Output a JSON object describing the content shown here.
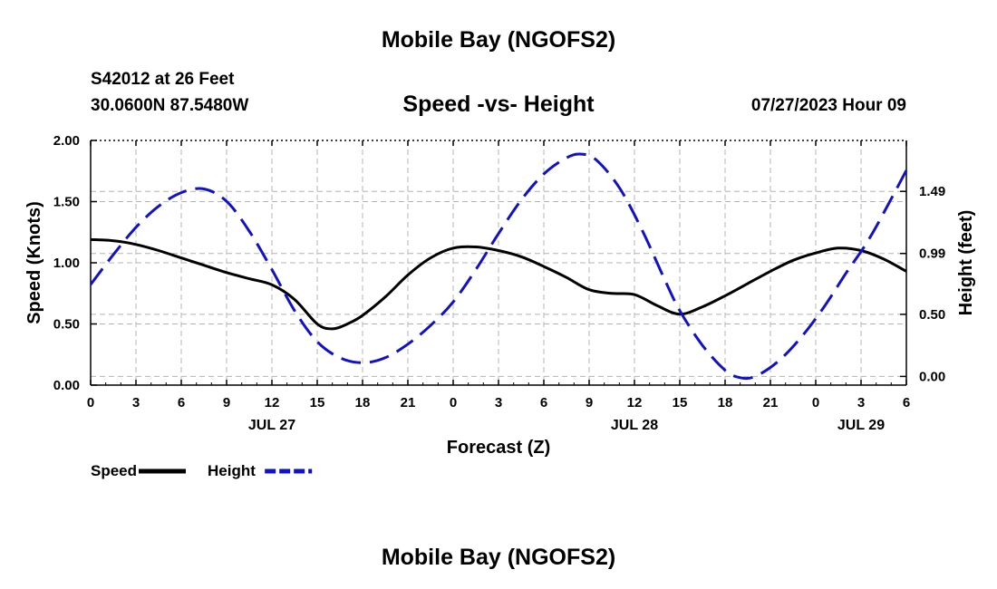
{
  "header": {
    "title": "Mobile Bay (NGOFS2)",
    "station": "S42012 at 26 Feet",
    "coords": "30.0600N  87.5480W",
    "plot_title": "Speed -vs- Height",
    "datetime": "07/27/2023 Hour 09"
  },
  "footer": {
    "title": "Mobile Bay (NGOFS2)"
  },
  "chart_data": {
    "type": "line",
    "xlabel": "Forecast (Z)",
    "ylabel": "Speed (Knots)",
    "y2label": "Height (feet)",
    "x_range_hours": [
      0,
      54
    ],
    "ylim": [
      0,
      2
    ],
    "y2lim": [
      -0.07,
      1.9
    ],
    "x_ticks": [
      {
        "h": 0,
        "label": "0"
      },
      {
        "h": 3,
        "label": "3"
      },
      {
        "h": 6,
        "label": "6"
      },
      {
        "h": 9,
        "label": "9"
      },
      {
        "h": 12,
        "label": "12"
      },
      {
        "h": 15,
        "label": "15"
      },
      {
        "h": 18,
        "label": "18"
      },
      {
        "h": 21,
        "label": "21"
      },
      {
        "h": 24,
        "label": "0"
      },
      {
        "h": 27,
        "label": "3"
      },
      {
        "h": 30,
        "label": "6"
      },
      {
        "h": 33,
        "label": "9"
      },
      {
        "h": 36,
        "label": "12"
      },
      {
        "h": 39,
        "label": "15"
      },
      {
        "h": 42,
        "label": "18"
      },
      {
        "h": 45,
        "label": "21"
      },
      {
        "h": 48,
        "label": "0"
      },
      {
        "h": 51,
        "label": "3"
      },
      {
        "h": 54,
        "label": "6"
      }
    ],
    "date_labels": [
      {
        "h": 12,
        "label": "JUL 27"
      },
      {
        "h": 36,
        "label": "JUL 28"
      },
      {
        "h": 51,
        "label": "JUL 29"
      }
    ],
    "y_ticks": [
      {
        "v": 0,
        "label": "0.00"
      },
      {
        "v": 0.5,
        "label": "0.50"
      },
      {
        "v": 1.0,
        "label": "1.00"
      },
      {
        "v": 1.5,
        "label": "1.50"
      },
      {
        "v": 2.0,
        "label": "2.00"
      }
    ],
    "y2_ticks": [
      {
        "v": 0.0,
        "label": "0.00"
      },
      {
        "v": 0.5,
        "label": "0.50"
      },
      {
        "v": 0.99,
        "label": "0.99"
      },
      {
        "v": 1.49,
        "label": "1.49"
      }
    ],
    "series": [
      {
        "name": "Speed",
        "axis": "left",
        "color": "#000000",
        "dash": false,
        "points": [
          [
            0,
            1.19
          ],
          [
            1.5,
            1.18
          ],
          [
            3,
            1.15
          ],
          [
            4.5,
            1.1
          ],
          [
            6,
            1.04
          ],
          [
            7.5,
            0.98
          ],
          [
            9,
            0.92
          ],
          [
            10.5,
            0.87
          ],
          [
            12,
            0.82
          ],
          [
            13.5,
            0.7
          ],
          [
            15,
            0.5
          ],
          [
            16,
            0.46
          ],
          [
            17,
            0.5
          ],
          [
            18,
            0.57
          ],
          [
            19.5,
            0.72
          ],
          [
            21,
            0.9
          ],
          [
            22.5,
            1.04
          ],
          [
            24,
            1.12
          ],
          [
            25.5,
            1.13
          ],
          [
            27,
            1.1
          ],
          [
            28.5,
            1.05
          ],
          [
            30,
            0.97
          ],
          [
            31.5,
            0.88
          ],
          [
            33,
            0.78
          ],
          [
            34.5,
            0.75
          ],
          [
            36,
            0.74
          ],
          [
            37.5,
            0.65
          ],
          [
            39,
            0.58
          ],
          [
            40.5,
            0.64
          ],
          [
            42,
            0.73
          ],
          [
            43.5,
            0.83
          ],
          [
            45,
            0.93
          ],
          [
            46.5,
            1.02
          ],
          [
            48,
            1.08
          ],
          [
            49.5,
            1.12
          ],
          [
            51,
            1.1
          ],
          [
            52.5,
            1.03
          ],
          [
            54,
            0.93
          ]
        ]
      },
      {
        "name": "Height",
        "axis": "right",
        "color": "#1111cc",
        "dash": true,
        "points": [
          [
            0,
            0.74
          ],
          [
            1.5,
            0.98
          ],
          [
            3,
            1.2
          ],
          [
            4.5,
            1.37
          ],
          [
            6,
            1.48
          ],
          [
            7.5,
            1.51
          ],
          [
            9,
            1.41
          ],
          [
            10.5,
            1.17
          ],
          [
            12,
            0.86
          ],
          [
            13.5,
            0.53
          ],
          [
            15,
            0.28
          ],
          [
            16.5,
            0.15
          ],
          [
            18,
            0.11
          ],
          [
            19.5,
            0.15
          ],
          [
            21,
            0.26
          ],
          [
            22.5,
            0.41
          ],
          [
            24,
            0.6
          ],
          [
            25.5,
            0.86
          ],
          [
            27,
            1.15
          ],
          [
            28.5,
            1.42
          ],
          [
            30,
            1.63
          ],
          [
            31.5,
            1.76
          ],
          [
            32.5,
            1.79
          ],
          [
            33.5,
            1.74
          ],
          [
            35,
            1.52
          ],
          [
            36.5,
            1.18
          ],
          [
            38,
            0.78
          ],
          [
            39,
            0.53
          ],
          [
            40.5,
            0.25
          ],
          [
            42,
            0.05
          ],
          [
            43,
            -0.01
          ],
          [
            44,
            0.0
          ],
          [
            45.5,
            0.12
          ],
          [
            47,
            0.31
          ],
          [
            48.5,
            0.55
          ],
          [
            50,
            0.83
          ],
          [
            51.5,
            1.1
          ],
          [
            53,
            1.43
          ],
          [
            54,
            1.66
          ]
        ]
      }
    ],
    "legend": [
      {
        "label": "Speed",
        "color": "#000000",
        "dash": false
      },
      {
        "label": "Height",
        "color": "#1111cc",
        "dash": true
      }
    ]
  }
}
